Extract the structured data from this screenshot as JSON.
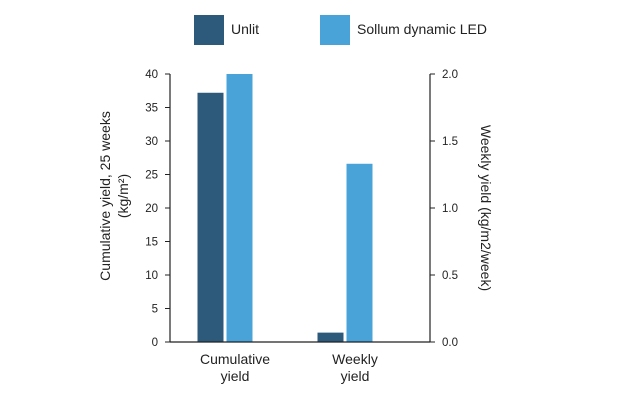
{
  "chart_data": {
    "type": "bar",
    "categories": [
      "Cumulative yield",
      "Weekly yield"
    ],
    "category_lines": [
      [
        "Cumulative",
        "yield"
      ],
      [
        "Weekly",
        "yield"
      ]
    ],
    "series": [
      {
        "name": "Unlit",
        "color": "#2d5a7b",
        "values": [
          37.2,
          0.07
        ],
        "axis": [
          "left",
          "right"
        ]
      },
      {
        "name": "Sollum dynamic LED",
        "color": "#4aa3d8",
        "values": [
          40.0,
          1.33
        ],
        "axis": [
          "left",
          "right"
        ]
      }
    ],
    "ylabel_left_lines": [
      "Cumulative yield, 25 weeks",
      "(kg/m²)"
    ],
    "ylabel_right": "Weekly yield (kg/m2/week)",
    "ylim_left": [
      0,
      40
    ],
    "ylim_right": [
      0,
      2.0
    ],
    "yticks_left": [
      "0",
      "5",
      "10",
      "15",
      "20",
      "25",
      "30",
      "35",
      "40"
    ],
    "yticks_right": [
      "0.0",
      "0.5",
      "1.0",
      "1.5",
      "2.0"
    ],
    "grid": false,
    "legend_position": "top"
  }
}
